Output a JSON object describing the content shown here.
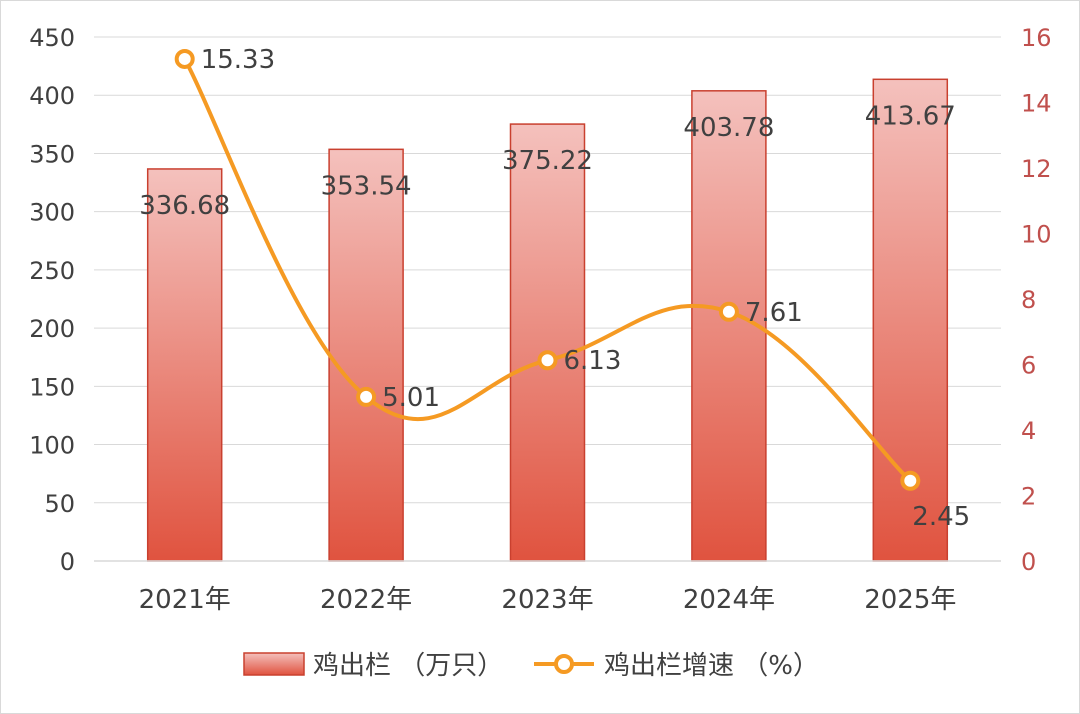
{
  "chart_data": {
    "type": "bar",
    "categories": [
      "2021年",
      "2022年",
      "2023年",
      "2024年",
      "2025年"
    ],
    "series": [
      {
        "name": "鸡出栏 （万只）",
        "type": "bar",
        "axis": "left",
        "values": [
          336.68,
          353.54,
          375.22,
          403.78,
          413.67
        ],
        "labels": [
          "336.68",
          "353.54",
          "375.22",
          "403.78",
          "413.67"
        ]
      },
      {
        "name": "鸡出栏增速 （%）",
        "type": "line",
        "axis": "right",
        "values": [
          15.33,
          5.01,
          6.13,
          7.61,
          2.45
        ],
        "labels": [
          "15.33",
          "5.01",
          "6.13",
          "7.61",
          "2.45"
        ]
      }
    ],
    "y_left": {
      "min": 0,
      "max": 450,
      "step": 50,
      "ticks": [
        "0",
        "50",
        "100",
        "150",
        "200",
        "250",
        "300",
        "350",
        "400",
        "450"
      ]
    },
    "y_right": {
      "min": 0,
      "max": 16,
      "step": 2,
      "ticks": [
        "0",
        "2",
        "4",
        "6",
        "8",
        "10",
        "12",
        "14",
        "16"
      ]
    },
    "grid": true,
    "legend": "bottom",
    "title": "",
    "xlabel": "",
    "ylabel": ""
  },
  "colors": {
    "bar_top": "#f4c1bd",
    "bar_bottom": "#e0533f",
    "bar_border": "#c9402f",
    "line": "#f59a23",
    "marker_fill": "#ffffff",
    "grid": "#d9d9d9",
    "left_axis_text": "#404040",
    "right_axis_text": "#c0504d"
  }
}
